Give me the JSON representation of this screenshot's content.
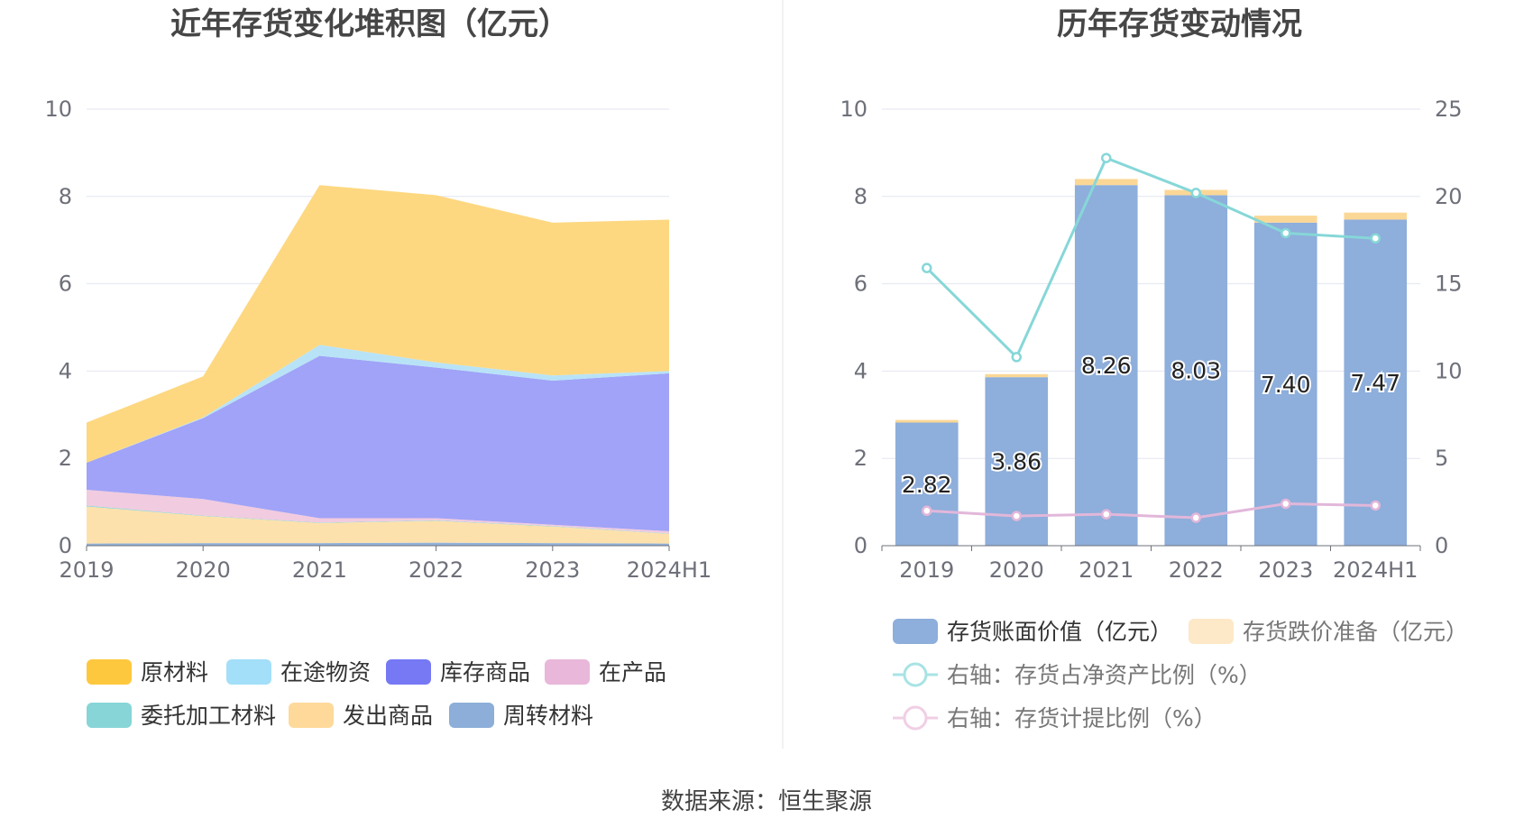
{
  "source": "数据来源：恒生聚源",
  "chart_data": [
    {
      "type": "area",
      "stacked": true,
      "title": "近年存货变化堆积图（亿元）",
      "categories": [
        "2019",
        "2020",
        "2021",
        "2022",
        "2023",
        "2024H1"
      ],
      "ylim": [
        0,
        10
      ],
      "yticks": [
        0,
        2,
        4,
        6,
        8,
        10
      ],
      "series": [
        {
          "name": "周转材料",
          "color": "#8caed8",
          "values": [
            0.05,
            0.06,
            0.06,
            0.07,
            0.06,
            0.05
          ]
        },
        {
          "name": "发出商品",
          "color": "#fddfa8",
          "values": [
            0.85,
            0.62,
            0.46,
            0.5,
            0.38,
            0.22
          ]
        },
        {
          "name": "委托加工材料",
          "color": "#87d5d7",
          "values": [
            0.02,
            0.01,
            0.01,
            0.01,
            0.01,
            0.01
          ]
        },
        {
          "name": "在产品",
          "color": "#f0c8dd",
          "values": [
            0.36,
            0.38,
            0.1,
            0.05,
            0.03,
            0.05
          ]
        },
        {
          "name": "库存商品",
          "color": "#9b9ef7",
          "values": [
            0.62,
            1.85,
            3.72,
            3.45,
            3.3,
            3.62
          ]
        },
        {
          "name": "在途物资",
          "color": "#b4e2f7",
          "values": [
            0.0,
            0.02,
            0.25,
            0.12,
            0.12,
            0.05
          ]
        },
        {
          "name": "原材料",
          "color": "#fdd67a",
          "values": [
            0.92,
            0.94,
            3.66,
            3.83,
            3.5,
            3.47
          ]
        }
      ],
      "legend": [
        {
          "name": "原材料",
          "color": "#fec83e"
        },
        {
          "name": "在途物资",
          "color": "#a3dff9"
        },
        {
          "name": "库存商品",
          "color": "#7679f3"
        },
        {
          "name": "在产品",
          "color": "#e8b7d9"
        },
        {
          "name": "委托加工材料",
          "color": "#87d5d7"
        },
        {
          "name": "发出商品",
          "color": "#fed99a"
        },
        {
          "name": "周转材料",
          "color": "#8caed8"
        }
      ]
    },
    {
      "type": "bar+line",
      "title": "历年存货变动情况",
      "categories": [
        "2019",
        "2020",
        "2021",
        "2022",
        "2023",
        "2024H1"
      ],
      "ylim": [
        0,
        10
      ],
      "yticks": [
        0,
        2,
        4,
        6,
        8,
        10
      ],
      "y2lim": [
        0,
        25
      ],
      "y2ticks": [
        0,
        5,
        10,
        15,
        20,
        25
      ],
      "bars": [
        {
          "name": "存货账面价值（亿元）",
          "color": "#8eaedb",
          "values": [
            2.82,
            3.86,
            8.26,
            8.03,
            7.4,
            7.47
          ],
          "labels": [
            "2.82",
            "3.86",
            "8.26",
            "8.03",
            "7.40",
            "7.47"
          ]
        },
        {
          "name": "存货跌价准备（亿元）",
          "color": "#fbd796",
          "values": [
            0.06,
            0.07,
            0.14,
            0.12,
            0.16,
            0.16
          ]
        }
      ],
      "lines": [
        {
          "name": "右轴：存货占净资产比例（%）",
          "color": "#86d7d8",
          "axis": "right",
          "values": [
            15.9,
            10.8,
            22.2,
            20.2,
            17.9,
            17.6
          ]
        },
        {
          "name": "右轴：存货计提比例（%）",
          "color": "#e2b7da",
          "axis": "right",
          "values": [
            2.0,
            1.7,
            1.8,
            1.6,
            2.4,
            2.3
          ]
        }
      ],
      "legend": [
        {
          "name": "存货账面价值（亿元）",
          "color": "#8eaedb",
          "kind": "box"
        },
        {
          "name": "存货跌价准备（亿元）",
          "color": "#fde8c7",
          "kind": "box"
        },
        {
          "name": "右轴：存货占净资产比例（%）",
          "color": "#a8e3e4",
          "kind": "line"
        },
        {
          "name": "右轴：存货计提比例（%）",
          "color": "#f0cfe5",
          "kind": "line"
        }
      ]
    }
  ]
}
